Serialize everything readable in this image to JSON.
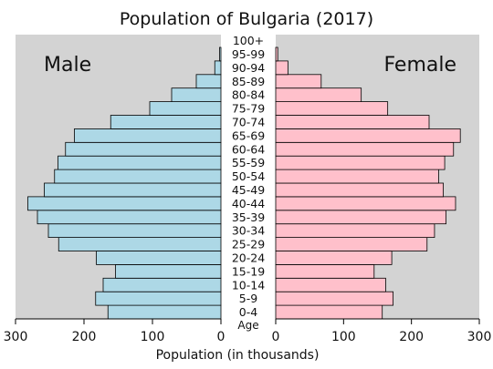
{
  "chart_data": {
    "type": "bar",
    "title": "Population of Bulgaria (2017)",
    "xlabel": "Population (in thousands)",
    "age_axis_label": "Age",
    "male_label": "Male",
    "female_label": "Female",
    "xlim": [
      0,
      300
    ],
    "x_ticks": [
      "300",
      "200",
      "100",
      "0",
      "0",
      "100",
      "200",
      "300"
    ],
    "categories": [
      "0-4",
      "5-9",
      "10-14",
      "15-19",
      "20-24",
      "25-29",
      "30-34",
      "35-39",
      "40-44",
      "45-49",
      "50-54",
      "55-59",
      "60-64",
      "65-69",
      "70-74",
      "75-79",
      "80-84",
      "85-89",
      "90-94",
      "95-99",
      "100+"
    ],
    "series": [
      {
        "name": "Male",
        "values": [
          165,
          183,
          172,
          154,
          182,
          237,
          252,
          268,
          282,
          258,
          243,
          238,
          227,
          214,
          161,
          104,
          72,
          36,
          9,
          2,
          0
        ]
      },
      {
        "name": "Female",
        "values": [
          157,
          173,
          162,
          145,
          171,
          223,
          234,
          251,
          265,
          247,
          240,
          249,
          262,
          272,
          226,
          165,
          126,
          67,
          18,
          3,
          0
        ]
      }
    ],
    "colors": {
      "male": "#add8e6",
      "female": "#ffc0cb",
      "panel": "#d3d3d3"
    },
    "grid": false
  }
}
